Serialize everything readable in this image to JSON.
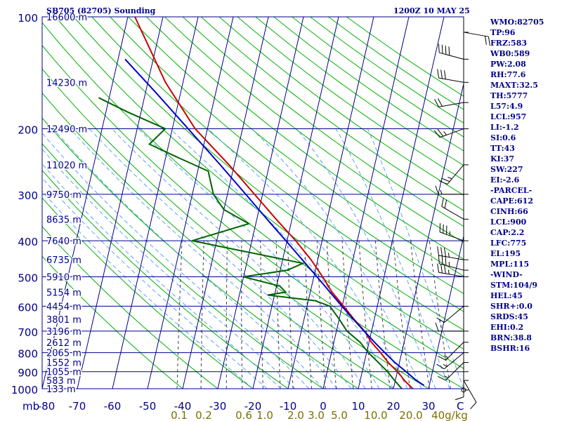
{
  "header": {
    "station": "SB705 (82705) Sounding",
    "time": "1200Z 10 MAY 25"
  },
  "colors": {
    "background": "#ffffff",
    "axes": "#00008b",
    "isobars": "#00008b",
    "isotherms": "#00008b",
    "dry_adiabats": "#00b000",
    "moist_adiabats": "#5aa0ff",
    "mixing_ratio": "#404040",
    "temperature": "#cc0000",
    "dewpoint": "#006400",
    "parcel": "#0000cc",
    "wind_barbs": "#000000",
    "text": "#00008b",
    "mixing_label": "#7a7000"
  },
  "stats": [
    "WMO:82705",
    "TP:96",
    "FRZ:583",
    "WB0:589",
    "PW:2.08",
    "RH:77.6",
    "MAXT:32.5",
    "TH:5777",
    "L57:4.9",
    "LCL:957",
    "LI:-1.2",
    "SI:0.6",
    "TT:43",
    "KI:37",
    "SW:227",
    "EI:-2.6",
    "-PARCEL-",
    "CAPE:612",
    "CINH:66",
    "LCL:900",
    "CAP:2.2",
    "LFC:775",
    "EL:195",
    "MPL:115",
    "-WIND-",
    "STM:104/9",
    "HEL:45",
    "SHR+:0.0",
    "SRDS:45",
    "EHI:0.2",
    "BRN:38.8",
    "BSHR:16"
  ],
  "chart_data": {
    "type": "line",
    "chart_kind": "skew-t log-p sounding",
    "x_axis": {
      "label": "",
      "unit_label": "C",
      "range": [
        -80,
        40
      ],
      "ticks": [
        -80,
        -70,
        -60,
        -50,
        -40,
        -30,
        -20,
        -10,
        0,
        10,
        20,
        30
      ],
      "tick_labels": [
        "-80",
        "-70",
        "-60",
        "-50",
        "-40",
        "-30",
        "-20",
        "-10",
        "0",
        "10",
        "20",
        "30"
      ]
    },
    "y_axis": {
      "label": "mb",
      "scale": "log",
      "range": [
        1000,
        100
      ],
      "ticks": [
        100,
        200,
        300,
        400,
        500,
        600,
        700,
        800,
        900,
        1000
      ],
      "tick_labels": [
        "100",
        "200",
        "300",
        "400",
        "500",
        "600",
        "700",
        "800",
        "900",
        "1000"
      ]
    },
    "height_labels": [
      {
        "p": 100,
        "label": "16600 m"
      },
      {
        "p": 150,
        "label": "14230 m"
      },
      {
        "p": 200,
        "label": "12490 m"
      },
      {
        "p": 250,
        "label": "11020 m"
      },
      {
        "p": 300,
        "label": "9750 m"
      },
      {
        "p": 350,
        "label": "8635 m"
      },
      {
        "p": 400,
        "label": "7640 m"
      },
      {
        "p": 450,
        "label": "6735 m"
      },
      {
        "p": 500,
        "label": "5910 m"
      },
      {
        "p": 550,
        "label": "5154 m"
      },
      {
        "p": 600,
        "label": "4454 m"
      },
      {
        "p": 650,
        "label": "3801 m"
      },
      {
        "p": 700,
        "label": "3196 m"
      },
      {
        "p": 750,
        "label": "2612 m"
      },
      {
        "p": 800,
        "label": "2065 m"
      },
      {
        "p": 850,
        "label": "1552 m"
      },
      {
        "p": 900,
        "label": "1055 m"
      },
      {
        "p": 950,
        "label": "583 m"
      },
      {
        "p": 1000,
        "label": "133 m"
      }
    ],
    "mixing_ratio_labels": [
      {
        "w": 0.1,
        "label": "0.1"
      },
      {
        "w": 0.2,
        "label": "0.2"
      },
      {
        "w": 0.6,
        "label": "0.6"
      },
      {
        "w": 1.0,
        "label": "1.0"
      },
      {
        "w": 2.0,
        "label": "2.0"
      },
      {
        "w": 3.0,
        "label": "3.0"
      },
      {
        "w": 5.0,
        "label": "5.0"
      },
      {
        "w": 10.0,
        "label": "10.0"
      },
      {
        "w": 20.0,
        "label": "20.0"
      },
      {
        "w": 40.0,
        "label": "40g/kg"
      }
    ],
    "series": [
      {
        "role": "temperature",
        "points": [
          [
            1008,
            26.6
          ],
          [
            1000,
            25.5
          ],
          [
            950,
            22.6
          ],
          [
            925,
            21.4
          ],
          [
            900,
            20.0
          ],
          [
            850,
            16.8
          ],
          [
            800,
            14.0
          ],
          [
            750,
            10.7
          ],
          [
            700,
            8.0
          ],
          [
            650,
            4.2
          ],
          [
            600,
            0.4
          ],
          [
            550,
            -3.8
          ],
          [
            500,
            -7.5
          ],
          [
            450,
            -11.9
          ],
          [
            400,
            -17.5
          ],
          [
            350,
            -24.5
          ],
          [
            300,
            -32.3
          ],
          [
            250,
            -41.5
          ],
          [
            200,
            -53.5
          ],
          [
            150,
            -65.0
          ],
          [
            100,
            -78.0
          ]
        ]
      },
      {
        "role": "dewpoint",
        "points": [
          [
            1008,
            23.5
          ],
          [
            1000,
            22.4
          ],
          [
            950,
            19.8
          ],
          [
            900,
            17.2
          ],
          [
            850,
            14.0
          ],
          [
            800,
            10.5
          ],
          [
            750,
            7.5
          ],
          [
            700,
            3.0
          ],
          [
            650,
            0.0
          ],
          [
            600,
            -3.5
          ],
          [
            580,
            -8.0
          ],
          [
            560,
            -22.0
          ],
          [
            550,
            -17.0
          ],
          [
            530,
            -19.0
          ],
          [
            500,
            -30.0
          ],
          [
            480,
            -18.0
          ],
          [
            460,
            -14.0
          ],
          [
            400,
            -47.0
          ],
          [
            360,
            -32.0
          ],
          [
            330,
            -40.0
          ],
          [
            300,
            -44.0
          ],
          [
            260,
            -47.0
          ],
          [
            240,
            -56.0
          ],
          [
            220,
            -65.5
          ],
          [
            200,
            -62.0
          ],
          [
            180,
            -74.0
          ],
          [
            165,
            -83.0
          ]
        ]
      },
      {
        "role": "parcel",
        "points": [
          [
            980,
            28.5
          ],
          [
            950,
            26.0
          ],
          [
            900,
            22.5
          ],
          [
            850,
            18.7
          ],
          [
            800,
            15.2
          ],
          [
            750,
            11.6
          ],
          [
            700,
            7.9
          ],
          [
            650,
            4.0
          ],
          [
            600,
            -0.1
          ],
          [
            550,
            -4.4
          ],
          [
            500,
            -9.1
          ],
          [
            450,
            -14.4
          ],
          [
            400,
            -20.3
          ],
          [
            350,
            -27.1
          ],
          [
            300,
            -34.8
          ],
          [
            250,
            -44.0
          ],
          [
            200,
            -55.5
          ],
          [
            160,
            -67.0
          ],
          [
            130,
            -78.0
          ]
        ]
      }
    ],
    "wind_barbs": [
      {
        "p": 1008,
        "dir": 0,
        "spd": 0
      },
      {
        "p": 950,
        "dir": 150,
        "spd": 10
      },
      {
        "p": 900,
        "dir": 180,
        "spd": 10
      },
      {
        "p": 850,
        "dir": 225,
        "spd": 15
      },
      {
        "p": 800,
        "dir": 230,
        "spd": 15
      },
      {
        "p": 750,
        "dir": 225,
        "spd": 15
      },
      {
        "p": 700,
        "dir": 270,
        "spd": 10
      },
      {
        "p": 600,
        "dir": 230,
        "spd": 10
      },
      {
        "p": 500,
        "dir": 280,
        "spd": 35
      },
      {
        "p": 480,
        "dir": 285,
        "spd": 35
      },
      {
        "p": 450,
        "dir": 280,
        "spd": 35
      },
      {
        "p": 400,
        "dir": 290,
        "spd": 35
      },
      {
        "p": 350,
        "dir": 300,
        "spd": 20
      },
      {
        "p": 300,
        "dir": 270,
        "spd": 15
      },
      {
        "p": 250,
        "dir": 220,
        "spd": 25
      },
      {
        "p": 200,
        "dir": 250,
        "spd": 25
      },
      {
        "p": 170,
        "dir": 260,
        "spd": 20
      },
      {
        "p": 150,
        "dir": 280,
        "spd": 30
      },
      {
        "p": 130,
        "dir": 285,
        "spd": 40
      },
      {
        "p": 110,
        "dir": 100,
        "spd": 20
      }
    ]
  }
}
